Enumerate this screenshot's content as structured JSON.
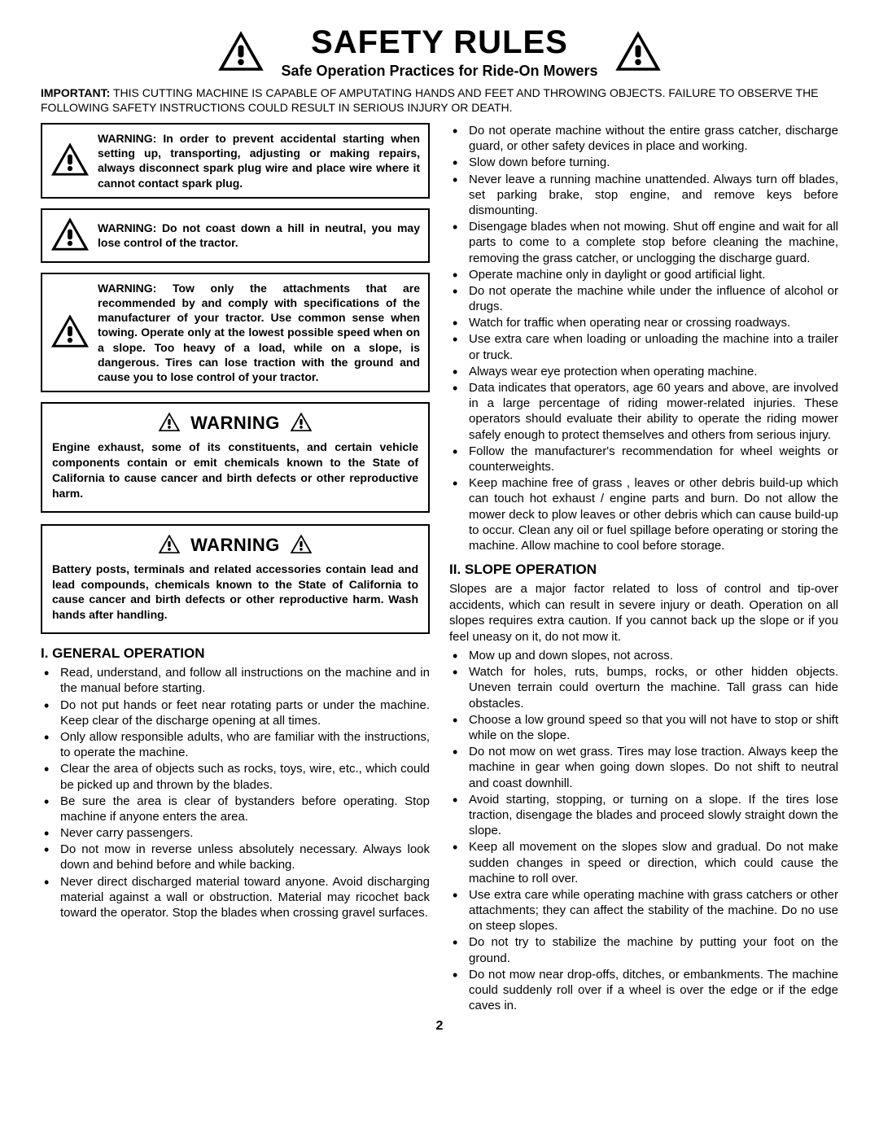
{
  "header": {
    "title": "SAFETY RULES",
    "subtitle": "Safe Operation Practices for Ride-On Mowers"
  },
  "important": {
    "label": "IMPORTANT:",
    "text": "THIS CUTTING MACHINE IS CAPABLE OF AMPUTATING HANDS AND FEET AND THROWING OBJECTS.  FAILURE TO OBSERVE THE FOLLOWING SAFETY INSTRUCTIONS COULD RESULT IN SERIOUS INJURY OR DEATH."
  },
  "icon_warning_boxes": [
    "WARNING:  In order to prevent accidental starting when setting up, transporting, adjusting or making repairs, always disconnect spark plug wire and place wire where it cannot contact spark plug.",
    "WARNING:  Do not coast down a hill in neutral, you may lose control of the tractor.",
    "WARNING:  Tow only the attachments that are recommended by and comply with specifications of the manufacturer of your tractor. Use common sense when towing. Operate only at the lowest possible speed when on a slope. Too heavy of a load, while on a slope, is dangerous.  Tires can lose traction with the ground and cause you to lose control of your tractor."
  ],
  "warning_heading": "WARNING",
  "warning_blocks": [
    "Engine exhaust, some of its constituents, and certain vehicle components contain or emit chemicals known to the State of California to cause cancer and birth defects or other reproductive harm.",
    "Battery posts, terminals and related accessories contain lead and lead compounds, chemicals known to the State of California to cause cancer and birth defects or other reproductive harm. Wash hands after handling."
  ],
  "section1": {
    "title": "I. GENERAL OPERATION",
    "bullets_left": [
      "Read, understand, and follow all instructions on the machine and in the manual before starting.",
      "Do not put hands or feet near rotating parts or under the machine. Keep clear of the discharge opening at all times.",
      "Only allow responsible adults, who are familiar with the instructions, to operate the machine.",
      "Clear the area of objects such as  rocks, toys, wire, etc., which could be picked up and thrown by the blades.",
      "Be sure the area is clear of bystanders before operating.  Stop machine if anyone enters the area.",
      "Never carry passengers.",
      "Do not mow in reverse unless absolutely necessary. Always look down and behind before and while backing.",
      "Never direct discharged material toward anyone. Avoid discharging material against a wall or obstruction. Material may ricochet back toward the operator. Stop the blades when crossing gravel surfaces."
    ],
    "bullets_right": [
      "Do not operate machine without the entire grass catcher, discharge guard, or other safety devices in place and working.",
      "Slow down before turning.",
      "Never leave a running machine unattended.  Always turn off blades, set parking brake, stop engine, and remove keys before dismounting.",
      "Disengage blades when not mowing. Shut off engine and wait for all parts to come to a complete stop before cleaning the machine, removing the grass catcher, or unclogging the discharge guard.",
      "Operate machine only in daylight or good artificial light.",
      "Do not operate the machine while under the influence of alcohol or drugs.",
      "Watch for traffic when operating near or crossing roadways.",
      "Use extra care when loading or unloading the machine into a trailer or truck.",
      "Always wear eye protection when operating machine.",
      "Data indicates that operators, age 60 years and above, are involved in a large percentage of riding mower-related injuries.  These operators should evaluate their ability to operate the riding mower safely enough to protect themselves and others from serious injury.",
      "Follow the manufacturer's recommendation for wheel weights or counterweights.",
      "Keep machine free of grass , leaves or other debris build-up which can touch hot exhaust / engine parts and burn. Do not allow the mower deck to plow leaves or other debris which can cause build-up to occur. Clean any oil or fuel spillage before operating or storing the machine. Allow machine to cool before storage."
    ]
  },
  "section2": {
    "title": "II. SLOPE OPERATION",
    "intro": "Slopes are a major factor related to loss of control and tip-over accidents, which can result in severe injury or death.  Operation on all slopes requires extra caution.  If you cannot back up the slope or if you feel uneasy on it, do not mow it.",
    "bullets": [
      "Mow up and down slopes, not across.",
      "Watch for holes, ruts, bumps, rocks, or other hidden objects.  Uneven terrain could overturn the machine. Tall grass can hide obstacles.",
      "Choose a low ground speed so that you will not have to stop or shift while on the slope.",
      "Do not mow on wet grass. Tires may lose traction. Always keep the machine in gear when going down slopes. Do not shift to neutral and coast downhill.",
      "Avoid starting, stopping, or turning on a slope.  If the tires lose traction,  disengage the blades and proceed slowly straight down the slope.",
      "Keep all movement on the slopes slow and gradual. Do not make sudden changes in speed or direction, which could cause the machine to roll over.",
      "Use extra care while operating machine with grass catchers or other attachments; they can affect the stability of the machine. Do no use on steep slopes.",
      "Do not  try to stabilize the machine by putting your foot on the ground.",
      "Do not mow near drop-offs, ditches, or embankments. The machine could suddenly roll over if a wheel is over the edge or if the edge caves in."
    ]
  },
  "page_number": "2",
  "icon_sizes": {
    "large": 58,
    "medium": 48,
    "small": 28
  },
  "colors": {
    "text": "#000000",
    "bg": "#ffffff",
    "border": "#000000"
  }
}
